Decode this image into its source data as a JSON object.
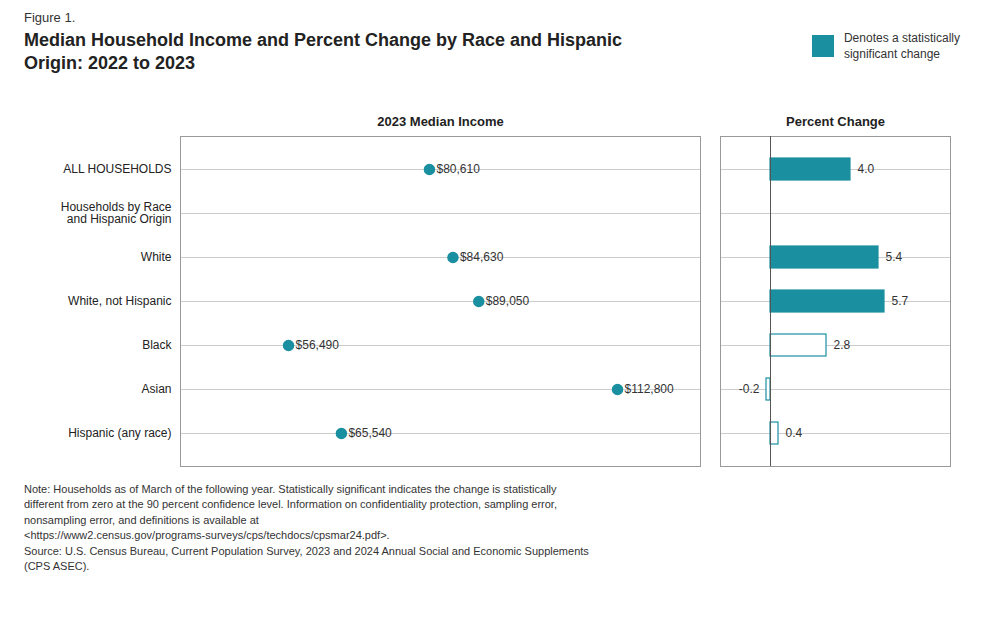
{
  "chart_data": [
    {
      "type": "scatter",
      "orientation": "horizontal",
      "subtitle": "Figure 1.",
      "title": "Median Household Income and Percent Change by Race and Hispanic\nOrigin: 2022 to 2023",
      "xlabel": "2023 Median Income",
      "categories": [
        "ALL HOUSEHOLDS",
        "Households by Race\nand Hispanic Origin",
        "White",
        "White, not Hispanic",
        "Black",
        "Asian",
        "Hispanic (any race)"
      ],
      "values": [
        80610,
        null,
        84630,
        89050,
        56490,
        112800,
        65540
      ],
      "value_labels": [
        "$80,610",
        null,
        "$84,630",
        "$89,050",
        "$56,490",
        "$112,800",
        "$65,540"
      ],
      "color": "#1a8fa0",
      "xlim": [
        38000,
        127000
      ],
      "xticks": [],
      "grid": true,
      "data_labels": true,
      "tick_labels": "y",
      "annotations": [
        "Note: Households as of March of the following year. Statistically significant indicates the change is statistically\ndifferent from zero at the 90 percent confidence level. Information on confidentiality protection, sampling error,\nnonsampling error, and definitions is available at\n<https://www2.census.gov/programs-surveys/cps/techdocs/cpsmar24.pdf>.\nSource: U.S. Census Bureau, Current Population Survey, 2023 and 2024 Annual Social and Economic Supplements\n(CPS ASEC)."
      ]
    },
    {
      "type": "bar",
      "orientation": "horizontal",
      "xlabel": "Percent Change",
      "categories": [
        "ALL HOUSEHOLDS",
        "Households by Race\nand Hispanic Origin",
        "White",
        "White, not Hispanic",
        "Black",
        "Asian",
        "Hispanic (any race)"
      ],
      "values": [
        4.0,
        null,
        5.4,
        5.7,
        2.8,
        -0.2,
        0.4
      ],
      "value_labels": [
        "4.0",
        null,
        "5.4",
        "5.7",
        "2.8",
        "-0.2",
        "0.4"
      ],
      "color": "#1a8fa0",
      "colors": [
        "#1a8fa0",
        "#ffffff",
        "#1a8fa0",
        "#1a8fa0",
        "#ffffff",
        "#ffffff",
        "#ffffff"
      ],
      "xlim": [
        -2.5,
        9.0
      ],
      "xticks": [],
      "grid": true,
      "data_labels": true,
      "tick_labels": false,
      "annotations": [
        {
          "text": "Denotes a statistically\nsignificant change",
          "color": "#1a8fa0"
        }
      ]
    }
  ]
}
